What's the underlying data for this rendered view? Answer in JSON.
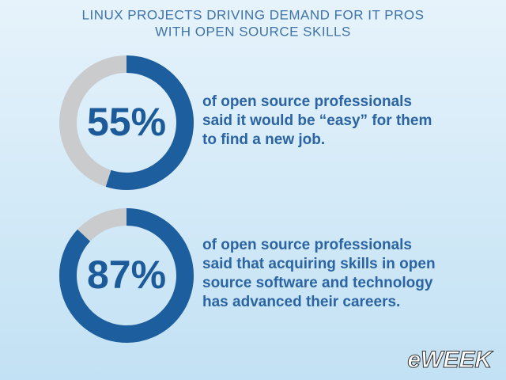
{
  "title": [
    "LINUX PROJECTS DRIVING DEMAND FOR IT PROS",
    "WITH OPEN SOURCE SKILLS"
  ],
  "chart_data": [
    {
      "type": "donut",
      "values": [
        55
      ],
      "value_labels": [
        "55%"
      ],
      "lim": [
        0,
        100
      ],
      "color": "#1c5e9e",
      "track_color": "#c9cbcd",
      "caption": [
        "of open source professionals",
        "said it would be “easy” for them",
        "to find a new job."
      ]
    },
    {
      "type": "donut",
      "values": [
        87
      ],
      "value_labels": [
        "87%"
      ],
      "lim": [
        0,
        100
      ],
      "color": "#1c5e9e",
      "track_color": "#c9cbcd",
      "caption": [
        "of open source professionals",
        "said that acquiring skills in open",
        "source software and technology",
        "has advanced their careers."
      ]
    }
  ],
  "logo": "eWEEK"
}
